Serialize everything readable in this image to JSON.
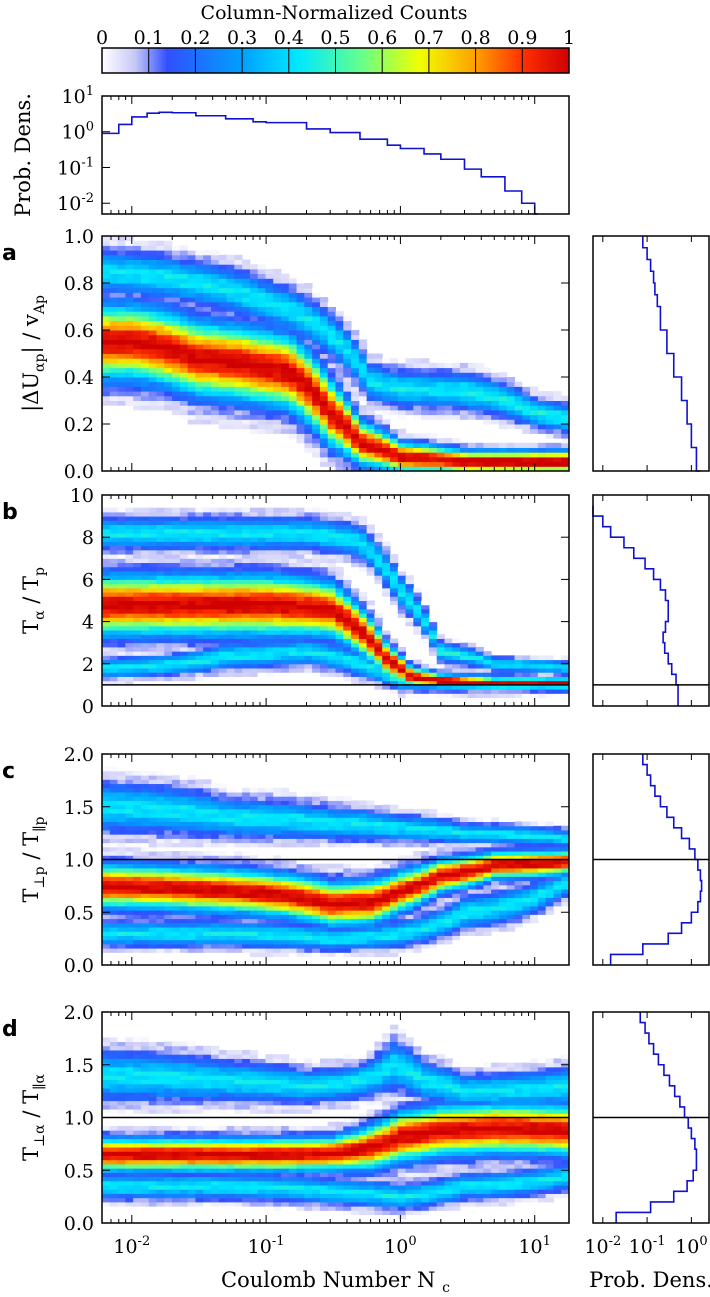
{
  "colorbar": {
    "title": "Column-Normalized Counts",
    "ticks": [
      "0",
      "0.1",
      "0.2",
      "0.3",
      "0.4",
      "0.5",
      "0.6",
      "0.7",
      "0.8",
      "0.9",
      "1"
    ]
  },
  "colors": {
    "line": "#1010d0",
    "frame": "#000000"
  },
  "chart_data": [
    {
      "id": "top-histogram",
      "type": "line",
      "title": "",
      "ylabel": "Prob. Dens.",
      "xscale": "log",
      "yscale": "log",
      "xlim": [
        0.006,
        18
      ],
      "ylim": [
        0.005,
        10
      ],
      "yticks": [
        {
          "v": 10,
          "b": "10",
          "e": "1"
        },
        {
          "v": 1,
          "b": "10",
          "e": "0"
        },
        {
          "v": 0.1,
          "b": "10",
          "e": "-1"
        },
        {
          "v": 0.01,
          "b": "10",
          "e": "-2"
        }
      ],
      "x": [
        0.006,
        0.008,
        0.01,
        0.013,
        0.016,
        0.02,
        0.03,
        0.05,
        0.08,
        0.1,
        0.2,
        0.3,
        0.5,
        0.8,
        1,
        1.5,
        2,
        3,
        4,
        6,
        8,
        10
      ],
      "y": [
        0.9,
        1.6,
        2.6,
        3.3,
        3.5,
        3.4,
        2.8,
        2.3,
        1.9,
        1.8,
        1.2,
        0.95,
        0.62,
        0.42,
        0.34,
        0.24,
        0.17,
        0.09,
        0.055,
        0.022,
        0.01,
        0.005
      ]
    },
    {
      "id": "panel-a",
      "type": "heatmap",
      "letter": "a",
      "ylabel_main": "|ΔU",
      "ylabel_sub": "αp",
      "ylabel_rest": "| / v",
      "ylabel_sub2": "Ap",
      "xscale": "log",
      "xlim": [
        0.006,
        18
      ],
      "ylim": [
        0,
        1
      ],
      "yticks": [
        "0.0",
        "0.2",
        "0.4",
        "0.6",
        "0.8",
        "1.0"
      ],
      "ridges": [
        {
          "name": "core",
          "x": [
            0.006,
            0.01,
            0.03,
            0.08,
            0.15,
            0.3,
            0.5,
            1,
            3,
            10,
            18
          ],
          "y": [
            0.55,
            0.55,
            0.48,
            0.45,
            0.42,
            0.25,
            0.12,
            0.06,
            0.04,
            0.04,
            0.04
          ],
          "width": [
            0.1,
            0.1,
            0.1,
            0.1,
            0.1,
            0.09,
            0.06,
            0.04,
            0.03,
            0.03,
            0.03
          ]
        },
        {
          "name": "upper",
          "x": [
            0.006,
            0.03,
            0.1,
            0.3,
            0.6,
            1,
            3,
            10,
            18
          ],
          "y": [
            0.85,
            0.8,
            0.72,
            0.58,
            0.38,
            0.35,
            0.34,
            0.25,
            0.22
          ],
          "width": [
            0.06,
            0.06,
            0.06,
            0.06,
            0.05,
            0.05,
            0.05,
            0.04,
            0.04
          ]
        }
      ],
      "marginal": {
        "xlabel": "",
        "y": [
          1,
          0.95,
          0.9,
          0.85,
          0.8,
          0.75,
          0.7,
          0.6,
          0.5,
          0.4,
          0.3,
          0.2,
          0.1,
          0.0
        ],
        "pd": [
          0.08,
          0.1,
          0.12,
          0.14,
          0.15,
          0.17,
          0.2,
          0.28,
          0.4,
          0.6,
          0.8,
          1.0,
          1.3,
          1.6
        ]
      },
      "hline": null
    },
    {
      "id": "panel-b",
      "type": "heatmap",
      "letter": "b",
      "ylabel_main": "T",
      "ylabel_sub": "α",
      "ylabel_rest": " / T",
      "ylabel_sub2": "p",
      "xscale": "log",
      "xlim": [
        0.006,
        18
      ],
      "ylim": [
        0,
        10
      ],
      "yticks": [
        "0",
        "2",
        "4",
        "6",
        "8",
        "10"
      ],
      "ridges": [
        {
          "name": "core",
          "x": [
            0.006,
            0.03,
            0.1,
            0.3,
            0.5,
            0.8,
            1.2,
            2,
            5,
            18
          ],
          "y": [
            4.8,
            4.8,
            4.8,
            4.6,
            3.6,
            2.2,
            1.4,
            1.2,
            1.1,
            1.1
          ],
          "width": [
            0.9,
            0.9,
            0.9,
            0.8,
            0.7,
            0.5,
            0.3,
            0.2,
            0.15,
            0.15
          ]
        },
        {
          "name": "upper",
          "x": [
            0.006,
            0.05,
            0.2,
            0.5,
            1,
            2,
            5,
            18
          ],
          "y": [
            8.2,
            8.2,
            8.2,
            7.8,
            5.5,
            2.6,
            2.0,
            1.8
          ],
          "width": [
            0.5,
            0.5,
            0.5,
            0.5,
            0.5,
            0.3,
            0.2,
            0.2
          ]
        },
        {
          "name": "lower",
          "x": [
            0.006,
            0.05,
            0.2,
            0.5,
            1,
            18
          ],
          "y": [
            1.8,
            2.4,
            2.6,
            2.0,
            1.2,
            1.0
          ],
          "width": [
            0.3,
            0.4,
            0.4,
            0.4,
            0.3,
            0.2
          ]
        }
      ],
      "marginal": {
        "y": [
          9.5,
          9,
          8.5,
          8,
          7.5,
          7,
          6.5,
          6,
          5.5,
          5,
          4.5,
          4,
          3.5,
          3,
          2.5,
          2,
          1.5,
          1
        ],
        "pd": [
          0.006,
          0.01,
          0.015,
          0.03,
          0.05,
          0.09,
          0.14,
          0.2,
          0.26,
          0.3,
          0.3,
          0.26,
          0.23,
          0.25,
          0.3,
          0.36,
          0.45,
          0.5
        ]
      },
      "hline": 1
    },
    {
      "id": "panel-c",
      "type": "heatmap",
      "letter": "c",
      "ylabel_main": "T",
      "ylabel_sub": "⊥p",
      "ylabel_rest": " / T",
      "ylabel_sub2": "∥p",
      "xscale": "log",
      "xlim": [
        0.006,
        18
      ],
      "ylim": [
        0,
        2
      ],
      "yticks": [
        "0.0",
        "0.5",
        "1.0",
        "1.5",
        "2.0"
      ],
      "ridges": [
        {
          "name": "core",
          "x": [
            0.006,
            0.03,
            0.1,
            0.3,
            0.6,
            1,
            2,
            5,
            18
          ],
          "y": [
            0.75,
            0.72,
            0.68,
            0.58,
            0.6,
            0.7,
            0.85,
            0.95,
            0.98
          ],
          "width": [
            0.13,
            0.13,
            0.13,
            0.13,
            0.13,
            0.12,
            0.1,
            0.08,
            0.07
          ]
        },
        {
          "name": "upper",
          "x": [
            0.006,
            0.05,
            0.3,
            1,
            3,
            18
          ],
          "y": [
            1.5,
            1.4,
            1.35,
            1.3,
            1.25,
            1.2
          ],
          "width": [
            0.15,
            0.12,
            0.1,
            0.08,
            0.06,
            0.05
          ]
        },
        {
          "name": "lower",
          "x": [
            0.006,
            0.05,
            0.3,
            1,
            3,
            18
          ],
          "y": [
            0.3,
            0.3,
            0.25,
            0.3,
            0.5,
            0.8
          ],
          "width": [
            0.08,
            0.08,
            0.07,
            0.08,
            0.1,
            0.08
          ]
        }
      ],
      "marginal": {
        "y": [
          2,
          1.9,
          1.8,
          1.7,
          1.6,
          1.5,
          1.4,
          1.3,
          1.2,
          1.1,
          1,
          0.9,
          0.8,
          0.7,
          0.6,
          0.5,
          0.4,
          0.3,
          0.2,
          0.1
        ],
        "pd": [
          0.08,
          0.1,
          0.12,
          0.15,
          0.2,
          0.28,
          0.4,
          0.6,
          0.9,
          1.2,
          1.4,
          1.6,
          1.7,
          1.6,
          1.4,
          1.0,
          0.6,
          0.3,
          0.08,
          0.015
        ]
      },
      "hline": 1
    },
    {
      "id": "panel-d",
      "type": "heatmap",
      "letter": "d",
      "ylabel_main": "T",
      "ylabel_sub": "⊥α",
      "ylabel_rest": " / T",
      "ylabel_sub2": "∥α",
      "xlabel": "Coulomb Number N",
      "xlabel_sub": "c",
      "xscale": "log",
      "xlim": [
        0.006,
        18
      ],
      "ylim": [
        0,
        2
      ],
      "yticks": [
        "0.0",
        "0.5",
        "1.0",
        "1.5",
        "2.0"
      ],
      "xticks": [
        {
          "v": 0.01,
          "b": "10",
          "e": "-2"
        },
        {
          "v": 0.1,
          "b": "10",
          "e": "-1"
        },
        {
          "v": 1,
          "b": "10",
          "e": "0"
        },
        {
          "v": 10,
          "b": "10",
          "e": "1"
        }
      ],
      "ridges": [
        {
          "name": "core",
          "x": [
            0.006,
            0.03,
            0.1,
            0.3,
            0.6,
            1,
            2,
            5,
            18
          ],
          "y": [
            0.65,
            0.65,
            0.65,
            0.66,
            0.72,
            0.82,
            0.88,
            0.9,
            0.88
          ],
          "width": [
            0.1,
            0.1,
            0.1,
            0.1,
            0.13,
            0.15,
            0.15,
            0.15,
            0.15
          ]
        },
        {
          "name": "upper",
          "x": [
            0.006,
            0.05,
            0.2,
            0.5,
            0.9,
            1.5,
            3,
            18
          ],
          "y": [
            1.4,
            1.35,
            1.3,
            1.35,
            1.5,
            1.35,
            1.25,
            1.3
          ],
          "width": [
            0.15,
            0.12,
            0.1,
            0.1,
            0.15,
            0.12,
            0.1,
            0.12
          ]
        },
        {
          "name": "lower",
          "x": [
            0.006,
            0.05,
            0.3,
            1,
            3,
            18
          ],
          "y": [
            0.35,
            0.35,
            0.3,
            0.25,
            0.35,
            0.45
          ],
          "width": [
            0.08,
            0.08,
            0.08,
            0.08,
            0.08,
            0.08
          ]
        }
      ],
      "marginal": {
        "xlabel": "Prob. Dens.",
        "xticks": [
          {
            "v": 0.01,
            "b": "10",
            "e": "-2"
          },
          {
            "v": 0.1,
            "b": "10",
            "e": "-1"
          },
          {
            "v": 1,
            "b": "10",
            "e": "0"
          }
        ],
        "y": [
          2,
          1.9,
          1.8,
          1.7,
          1.6,
          1.5,
          1.4,
          1.3,
          1.2,
          1.1,
          1,
          0.9,
          0.8,
          0.7,
          0.6,
          0.5,
          0.4,
          0.3,
          0.2,
          0.1
        ],
        "pd": [
          0.07,
          0.09,
          0.11,
          0.14,
          0.18,
          0.24,
          0.32,
          0.42,
          0.55,
          0.7,
          0.85,
          1.0,
          1.2,
          1.3,
          1.3,
          1.1,
          0.8,
          0.4,
          0.12,
          0.02
        ]
      },
      "hline": 1
    }
  ]
}
